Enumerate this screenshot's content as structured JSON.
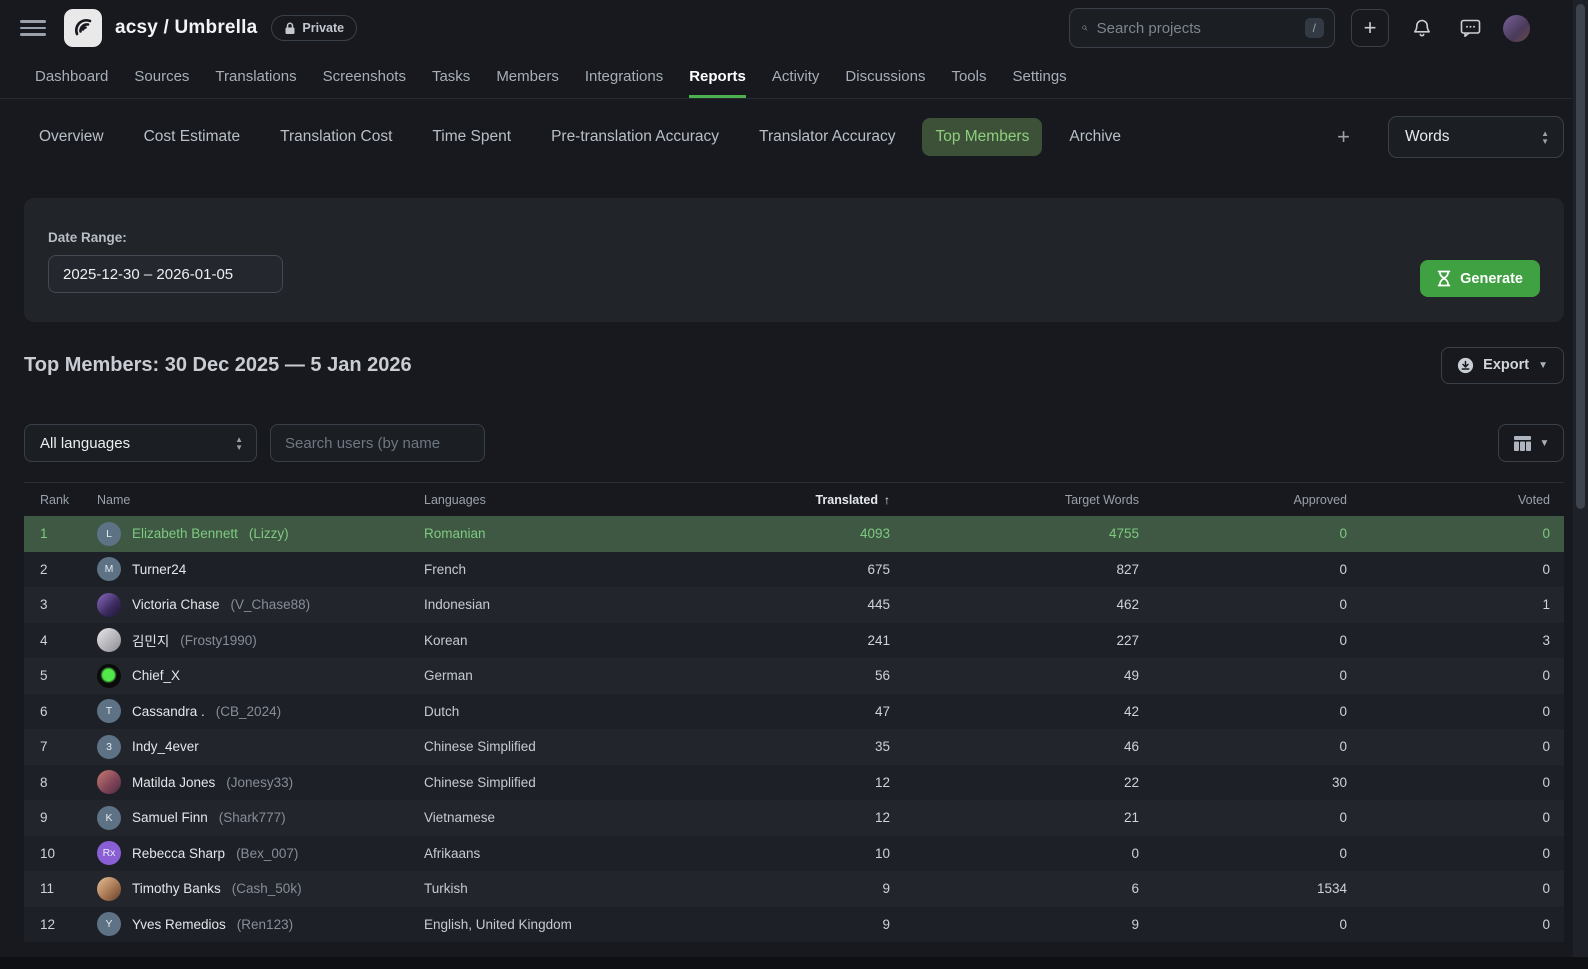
{
  "header": {
    "project_title": "acsy / Umbrella",
    "privacy_badge": "Private",
    "search_placeholder": "Search projects",
    "search_shortcut": "/",
    "add_button": "+",
    "avatar_bg": "linear-gradient(135deg,#7a6296,#4a3a5c 60%,#6b4a44)"
  },
  "nav": {
    "tabs": [
      {
        "label": "Dashboard",
        "active": false
      },
      {
        "label": "Sources",
        "active": false
      },
      {
        "label": "Translations",
        "active": false
      },
      {
        "label": "Screenshots",
        "active": false
      },
      {
        "label": "Tasks",
        "active": false
      },
      {
        "label": "Members",
        "active": false
      },
      {
        "label": "Integrations",
        "active": false
      },
      {
        "label": "Reports",
        "active": true
      },
      {
        "label": "Activity",
        "active": false
      },
      {
        "label": "Discussions",
        "active": false
      },
      {
        "label": "Tools",
        "active": false
      },
      {
        "label": "Settings",
        "active": false
      }
    ]
  },
  "subnav": {
    "tabs": [
      {
        "label": "Overview",
        "active": false
      },
      {
        "label": "Cost Estimate",
        "active": false
      },
      {
        "label": "Translation Cost",
        "active": false
      },
      {
        "label": "Time Spent",
        "active": false
      },
      {
        "label": "Pre-translation Accuracy",
        "active": false
      },
      {
        "label": "Translator Accuracy",
        "active": false
      },
      {
        "label": "Top Members",
        "active": true
      },
      {
        "label": "Archive",
        "active": false
      }
    ],
    "add_label": "+",
    "unit_select_value": "Words"
  },
  "generate_panel": {
    "date_range_label": "Date Range:",
    "date_range_value": "2025-12-30 – 2026-01-05",
    "generate_label": "Generate"
  },
  "report": {
    "title": "Top Members: 30 Dec 2025 — 5 Jan 2026",
    "export_label": "Export"
  },
  "filters": {
    "language_select_value": "All languages",
    "user_search_placeholder": "Search users (by name"
  },
  "table": {
    "columns": [
      "Rank",
      "Name",
      "Languages",
      "Translated",
      "Target Words",
      "Approved",
      "Voted"
    ],
    "sort_column": "Translated",
    "sort_direction": "asc",
    "rows": [
      {
        "rank": "1",
        "name": "Elizabeth Bennett",
        "username": "(Lizzy)",
        "avatar": {
          "label": "L",
          "bg": "#5d7284"
        },
        "languages": "Romanian",
        "translated": "4093",
        "target_words": "4755",
        "approved": "0",
        "voted": "0",
        "highlighted": true
      },
      {
        "rank": "2",
        "name": "Turner24",
        "username": "",
        "avatar": {
          "label": "M",
          "bg": "#5d7284"
        },
        "languages": "French",
        "translated": "675",
        "target_words": "827",
        "approved": "0",
        "voted": "0",
        "highlighted": false
      },
      {
        "rank": "3",
        "name": "Victoria Chase",
        "username": "(V_Chase88)",
        "avatar": {
          "label": "",
          "bg": "linear-gradient(135deg,#8a6cc0,#3a2a5e 60%,#1f1733)"
        },
        "languages": "Indonesian",
        "translated": "445",
        "target_words": "462",
        "approved": "0",
        "voted": "1",
        "highlighted": false
      },
      {
        "rank": "4",
        "name": "김민지",
        "username": "(Frosty1990)",
        "avatar": {
          "label": "",
          "bg": "linear-gradient(135deg,#e8e8ea,#a7a7ad 70%,#8b8b92)"
        },
        "languages": "Korean",
        "translated": "241",
        "target_words": "227",
        "approved": "0",
        "voted": "3",
        "highlighted": false
      },
      {
        "rank": "5",
        "name": "Chief_X",
        "username": "",
        "avatar": {
          "label": "",
          "bg": "radial-gradient(circle at 48% 46%, #53e84a 0 32%, #0b0b0b 46%)"
        },
        "languages": "German",
        "translated": "56",
        "target_words": "49",
        "approved": "0",
        "voted": "0",
        "highlighted": false
      },
      {
        "rank": "6",
        "name": "Cassandra .",
        "username": "(CB_2024)",
        "avatar": {
          "label": "T",
          "bg": "#5d7284"
        },
        "languages": "Dutch",
        "translated": "47",
        "target_words": "42",
        "approved": "0",
        "voted": "0",
        "highlighted": false
      },
      {
        "rank": "7",
        "name": "Indy_4ever",
        "username": "",
        "avatar": {
          "label": "3",
          "bg": "#5d7284"
        },
        "languages": "Chinese Simplified",
        "translated": "35",
        "target_words": "46",
        "approved": "0",
        "voted": "0",
        "highlighted": false
      },
      {
        "rank": "8",
        "name": "Matilda Jones",
        "username": "(Jonesy33)",
        "avatar": {
          "label": "",
          "bg": "linear-gradient(135deg,#c97a6e,#7e4356 60%,#4a2c44)"
        },
        "languages": "Chinese Simplified",
        "translated": "12",
        "target_words": "22",
        "approved": "30",
        "voted": "0",
        "highlighted": false
      },
      {
        "rank": "9",
        "name": "Samuel Finn",
        "username": "(Shark777)",
        "avatar": {
          "label": "K",
          "bg": "#5d7284"
        },
        "languages": "Vietnamese",
        "translated": "12",
        "target_words": "21",
        "approved": "0",
        "voted": "0",
        "highlighted": false
      },
      {
        "rank": "10",
        "name": "Rebecca Sharp",
        "username": "(Bex_007)",
        "avatar": {
          "label": "Rx",
          "bg": "#8a5fd6"
        },
        "languages": "Afrikaans",
        "translated": "10",
        "target_words": "0",
        "approved": "0",
        "voted": "0",
        "highlighted": false
      },
      {
        "rank": "11",
        "name": "Timothy Banks",
        "username": "(Cash_50k)",
        "avatar": {
          "label": "",
          "bg": "linear-gradient(135deg,#e7c194,#9c6b4a 65%,#5e3f2e)"
        },
        "languages": "Turkish",
        "translated": "9",
        "target_words": "6",
        "approved": "1534",
        "voted": "0",
        "highlighted": false
      },
      {
        "rank": "12",
        "name": "Yves Remedios",
        "username": "(Ren123)",
        "avatar": {
          "label": "Y",
          "bg": "#5d7284"
        },
        "languages": "English, United Kingdom",
        "translated": "9",
        "target_words": "9",
        "approved": "0",
        "voted": "0",
        "highlighted": false
      }
    ]
  },
  "colors": {
    "accent_green": "#3fa142",
    "active_tab_underline": "#4caf50",
    "active_subtab_bg": "#3c5138",
    "active_subtab_text": "#8ecf7f",
    "highlight_row_bg": "#3e5843",
    "highlight_row_text": "#7fca81",
    "page_bg": "#17191e",
    "panel_bg": "#212429"
  }
}
